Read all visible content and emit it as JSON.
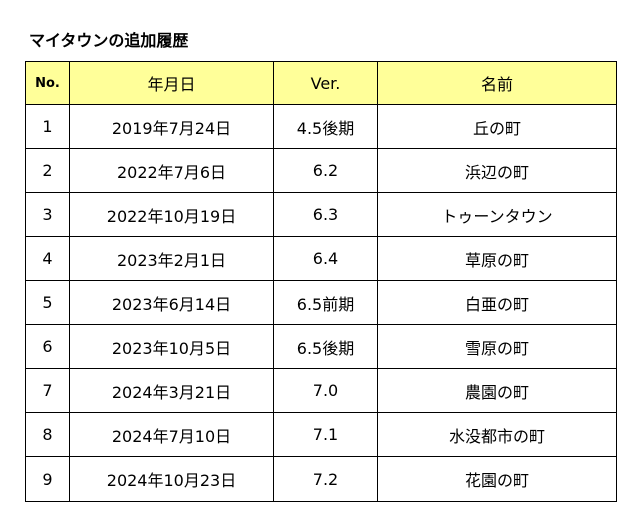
{
  "title": "マイタウンの追加履歴",
  "table": {
    "header_bg": "#ffff99",
    "columns": [
      "No.",
      "年月日",
      "Ver.",
      "名前"
    ],
    "rows": [
      {
        "no": "1",
        "date": "2019年7月24日",
        "ver": "4.5後期",
        "name": "丘の町"
      },
      {
        "no": "2",
        "date": "2022年7月6日",
        "ver": "6.2",
        "name": "浜辺の町"
      },
      {
        "no": "3",
        "date": "2022年10月19日",
        "ver": "6.3",
        "name": "トゥーンタウン"
      },
      {
        "no": "4",
        "date": "2023年2月1日",
        "ver": "6.4",
        "name": "草原の町"
      },
      {
        "no": "5",
        "date": "2023年6月14日",
        "ver": "6.5前期",
        "name": "白亜の町"
      },
      {
        "no": "6",
        "date": "2023年10月5日",
        "ver": "6.5後期",
        "name": "雪原の町"
      },
      {
        "no": "7",
        "date": "2024年3月21日",
        "ver": "7.0",
        "name": "農園の町"
      },
      {
        "no": "8",
        "date": "2024年7月10日",
        "ver": "7.1",
        "name": "水没都市の町"
      },
      {
        "no": "9",
        "date": "2024年10月23日",
        "ver": "7.2",
        "name": "花園の町"
      }
    ]
  }
}
